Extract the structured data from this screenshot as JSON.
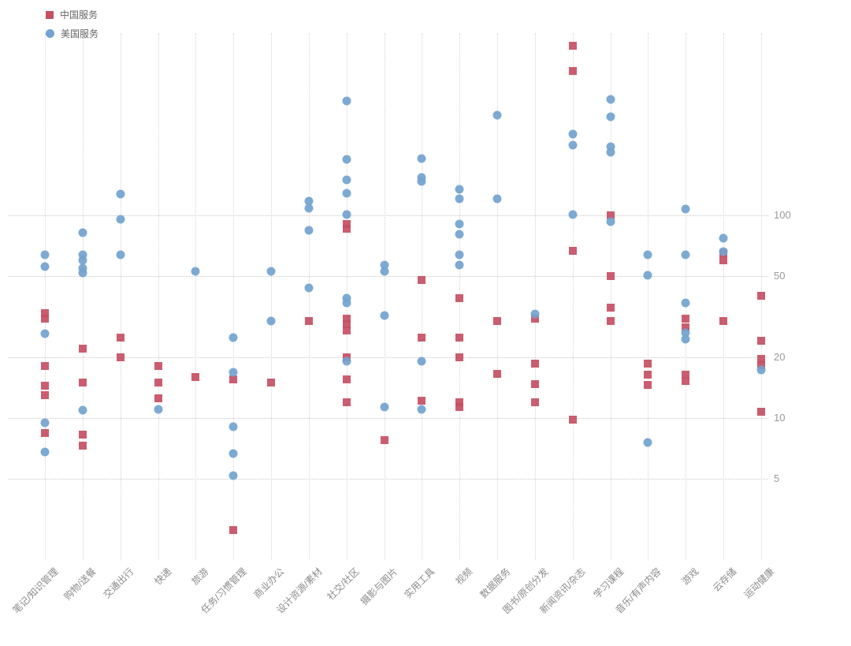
{
  "colors": {
    "china_red": "#c64f63",
    "us_blue": "#72a3cf",
    "gridline": "#cccccc",
    "tick_label": "#9a9a9a"
  },
  "chart_data": {
    "type": "scatter",
    "title": "",
    "xlabel": "",
    "ylabel": "",
    "yscale": "log",
    "grid": true,
    "legend_position": "top-left",
    "yticks": [
      {
        "label": "100",
        "value": 100
      },
      {
        "label": "50",
        "value": 50
      },
      {
        "label": "20",
        "value": 20
      },
      {
        "label": "10",
        "value": 10
      },
      {
        "label": "5",
        "value": 5
      }
    ],
    "ylim": [
      2.5,
      800
    ],
    "categories": [
      "笔记/知识管理",
      "购物/送餐",
      "交通出行",
      "快递",
      "旅游",
      "任务/习惯管理",
      "商业办公",
      "设计资源/素材",
      "社交/社区",
      "摄影与图片",
      "实用工具",
      "视频",
      "数据服务",
      "图书/原创分发",
      "新闻资讯/杂志",
      "学习课程",
      "音乐/有声内容",
      "游戏",
      "云存储",
      "运动健康"
    ],
    "series": [
      {
        "name": "中国服务",
        "marker": "square",
        "color": "#c64f63",
        "points": [
          [
            0,
            33
          ],
          [
            0,
            31
          ],
          [
            0,
            18
          ],
          [
            0,
            14.5
          ],
          [
            0,
            13
          ],
          [
            0,
            8.4
          ],
          [
            1,
            22
          ],
          [
            1,
            15
          ],
          [
            1,
            8.3
          ],
          [
            1,
            7.3
          ],
          [
            2,
            25
          ],
          [
            2,
            20
          ],
          [
            3,
            18
          ],
          [
            3,
            15
          ],
          [
            3,
            12.5
          ],
          [
            4,
            16
          ],
          [
            5,
            15.5
          ],
          [
            5,
            2.8
          ],
          [
            6,
            15
          ],
          [
            7,
            30
          ],
          [
            8,
            91
          ],
          [
            8,
            86
          ],
          [
            8,
            31
          ],
          [
            8,
            29
          ],
          [
            8,
            27
          ],
          [
            8,
            20
          ],
          [
            8,
            15.5
          ],
          [
            8,
            12
          ],
          [
            9,
            7.8
          ],
          [
            10,
            48
          ],
          [
            10,
            25
          ],
          [
            10,
            12.2
          ],
          [
            11,
            39
          ],
          [
            11,
            25
          ],
          [
            11,
            20
          ],
          [
            11,
            12
          ],
          [
            11,
            11.3
          ],
          [
            12,
            30
          ],
          [
            12,
            16.5
          ],
          [
            13,
            31
          ],
          [
            13,
            18.5
          ],
          [
            13,
            14.7
          ],
          [
            13,
            12
          ],
          [
            14,
            686
          ],
          [
            14,
            515
          ],
          [
            14,
            67
          ],
          [
            14,
            9.8
          ],
          [
            15,
            100
          ],
          [
            15,
            50
          ],
          [
            15,
            35
          ],
          [
            15,
            30
          ],
          [
            16,
            18.5
          ],
          [
            16,
            16.3
          ],
          [
            16,
            14.6
          ],
          [
            17,
            31
          ],
          [
            17,
            28
          ],
          [
            17,
            16.3
          ],
          [
            17,
            15.3
          ],
          [
            18,
            65
          ],
          [
            18,
            60
          ],
          [
            18,
            30
          ],
          [
            19,
            40
          ],
          [
            19,
            24
          ],
          [
            19,
            19.5
          ],
          [
            19,
            18.3
          ],
          [
            19,
            10.7
          ]
        ]
      },
      {
        "name": "美国服务",
        "marker": "circle",
        "color": "#72a3cf",
        "points": [
          [
            0,
            64
          ],
          [
            0,
            56
          ],
          [
            0,
            26
          ],
          [
            0,
            9.5
          ],
          [
            0,
            6.8
          ],
          [
            1,
            82
          ],
          [
            1,
            64
          ],
          [
            1,
            60
          ],
          [
            1,
            55
          ],
          [
            1,
            52
          ],
          [
            1,
            10.9
          ],
          [
            2,
            127
          ],
          [
            2,
            96
          ],
          [
            2,
            64
          ],
          [
            3,
            11
          ],
          [
            4,
            53
          ],
          [
            5,
            25
          ],
          [
            5,
            16.8
          ],
          [
            5,
            9.1
          ],
          [
            5,
            6.7
          ],
          [
            5,
            5.2
          ],
          [
            6,
            53
          ],
          [
            6,
            30
          ],
          [
            7,
            117
          ],
          [
            7,
            108
          ],
          [
            7,
            84
          ],
          [
            7,
            44
          ],
          [
            8,
            366
          ],
          [
            8,
            189
          ],
          [
            8,
            150
          ],
          [
            8,
            128
          ],
          [
            8,
            101
          ],
          [
            8,
            39
          ],
          [
            8,
            37
          ],
          [
            8,
            19
          ],
          [
            9,
            57
          ],
          [
            9,
            53
          ],
          [
            9,
            32
          ],
          [
            9,
            11.3
          ],
          [
            10,
            190
          ],
          [
            10,
            154
          ],
          [
            10,
            147
          ],
          [
            10,
            19
          ],
          [
            10,
            11
          ],
          [
            11,
            134
          ],
          [
            11,
            121
          ],
          [
            11,
            91
          ],
          [
            11,
            81
          ],
          [
            11,
            64
          ],
          [
            11,
            57
          ],
          [
            12,
            312
          ],
          [
            12,
            121
          ],
          [
            13,
            32.6
          ],
          [
            14,
            252
          ],
          [
            14,
            222
          ],
          [
            14,
            101
          ],
          [
            15,
            374
          ],
          [
            15,
            306
          ],
          [
            15,
            218
          ],
          [
            15,
            205
          ],
          [
            15,
            93
          ],
          [
            16,
            64
          ],
          [
            16,
            50.5
          ],
          [
            16,
            7.6
          ],
          [
            17,
            107
          ],
          [
            17,
            64
          ],
          [
            17,
            37
          ],
          [
            17,
            26.3
          ],
          [
            17,
            24.5
          ],
          [
            18,
            77
          ],
          [
            18,
            66
          ],
          [
            19,
            17.2
          ]
        ]
      }
    ]
  }
}
